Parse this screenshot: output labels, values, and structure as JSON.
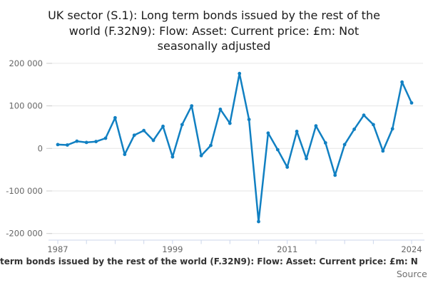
{
  "page": {
    "title_lines": [
      "UK sector (S.1): Long term bonds issued by the rest of the",
      "world (F.32N9): Flow: Asset: Current price: £m: Not",
      "seasonally adjusted"
    ]
  },
  "footer": {
    "caption_clipped": "term bonds issued by the rest of the world (F.32N9): Flow: Asset: Current price: £m: N",
    "source_label": "Source:"
  },
  "chart_data": {
    "type": "line",
    "title": "UK sector (S.1): Long term bonds issued by the rest of the world (F.32N9): Flow: Asset: Current price: £m: Not seasonally adjusted",
    "x": [
      1987,
      1988,
      1989,
      1990,
      1991,
      1992,
      1993,
      1994,
      1995,
      1996,
      1997,
      1998,
      1999,
      2000,
      2001,
      2002,
      2003,
      2004,
      2005,
      2006,
      2007,
      2008,
      2009,
      2010,
      2011,
      2012,
      2013,
      2014,
      2015,
      2016,
      2017,
      2018,
      2019,
      2020,
      2021,
      2022,
      2023,
      2024
    ],
    "values": [
      9000,
      8000,
      17000,
      14000,
      16000,
      24000,
      72000,
      -14000,
      31000,
      42000,
      19000,
      52000,
      -20000,
      56000,
      100000,
      -17000,
      7000,
      92000,
      59000,
      176000,
      68000,
      -172000,
      36000,
      -3000,
      -44000,
      40000,
      -24000,
      53000,
      13000,
      -63000,
      9000,
      45000,
      78000,
      56000,
      -6000,
      46000,
      156000,
      107000
    ],
    "xlabel": "",
    "ylabel": "",
    "ylim": [
      -200000,
      200000
    ],
    "yticks": [
      {
        "value": 200000,
        "label": "200 000"
      },
      {
        "value": 100000,
        "label": "100 000"
      },
      {
        "value": 0,
        "label": "0"
      },
      {
        "value": -100000,
        "label": "-100 000"
      },
      {
        "value": -200000,
        "label": "-200 000"
      }
    ],
    "xticks_minor_years": [
      1987,
      1990,
      1993,
      1996,
      1999,
      2002,
      2005,
      2008,
      2011,
      2014,
      2017,
      2020,
      2024
    ],
    "xticks_labeled": [
      {
        "year": 1987,
        "label": "1987"
      },
      {
        "year": 1999,
        "label": "1999"
      },
      {
        "year": 2011,
        "label": "2011"
      },
      {
        "year": 2024,
        "label": "2024"
      }
    ],
    "grid": true,
    "legend": false,
    "colors": {
      "line": "#1180C2",
      "grid": "#e6e6e6",
      "axis": "#ccd6eb",
      "y_tick": "#cccccc",
      "axis_label_text": "#666666"
    }
  }
}
